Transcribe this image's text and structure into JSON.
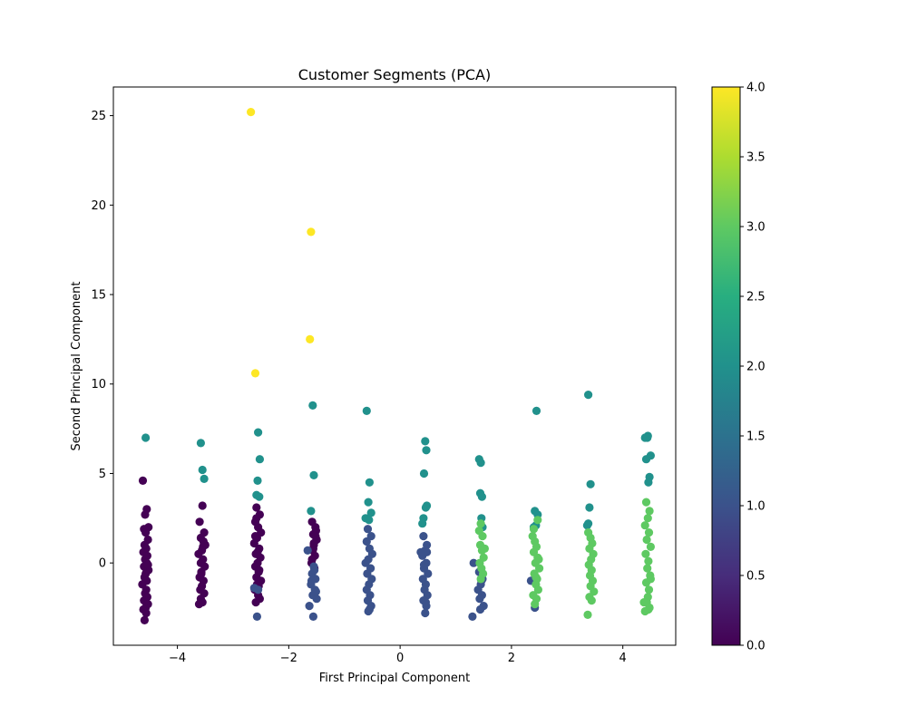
{
  "chart_data": {
    "type": "scatter",
    "title": "Customer Segments (PCA)",
    "xlabel": "First Principal Component",
    "ylabel": "Second Principal Component",
    "xlim": [
      -5.15,
      4.95
    ],
    "ylim": [
      -4.6,
      26.6
    ],
    "x_ticks": [
      -4,
      -2,
      0,
      2,
      4
    ],
    "x_tick_labels": [
      "−4",
      "−2",
      "0",
      "2",
      "4"
    ],
    "y_ticks": [
      0,
      5,
      10,
      15,
      20,
      25
    ],
    "y_tick_labels": [
      "0",
      "5",
      "10",
      "15",
      "20",
      "25"
    ],
    "grid": false,
    "legend": "none",
    "colormap": "viridis",
    "colorbar": {
      "range": [
        0,
        4
      ],
      "ticks": [
        0.0,
        0.5,
        1.0,
        1.5,
        2.0,
        2.5,
        3.0,
        3.5,
        4.0
      ],
      "tick_labels": [
        "0.0",
        "0.5",
        "1.0",
        "1.5",
        "2.0",
        "2.5",
        "3.0",
        "3.5",
        "4.0"
      ]
    },
    "cluster_colors": [
      "#440154",
      "#3b528b",
      "#21918c",
      "#5ec962",
      "#fde725"
    ],
    "clusters": [
      {
        "value": 0,
        "x": [
          -4.62,
          -4.55,
          -4.58,
          -4.52,
          -4.6,
          -4.57,
          -4.53,
          -4.59,
          -4.56,
          -4.61,
          -4.54,
          -4.58,
          -4.55,
          -4.6,
          -4.52,
          -4.57,
          -4.59,
          -4.55,
          -4.63,
          -4.56,
          -4.58,
          -4.54,
          -4.6,
          -4.53,
          -4.57,
          -4.61,
          -4.56,
          -4.59,
          -4.53,
          -3.55,
          -3.6,
          -3.52,
          -3.58,
          -3.5,
          -3.56,
          -3.62,
          -3.54,
          -3.58,
          -3.51,
          -3.57,
          -3.6,
          -3.53,
          -3.56,
          -3.59,
          -3.52,
          -3.58,
          -3.55,
          -3.61,
          -3.54,
          -3.57,
          -3.53,
          -2.58,
          -2.52,
          -2.6,
          -2.55,
          -2.5,
          -2.57,
          -2.62,
          -2.53,
          -2.59,
          -2.51,
          -2.56,
          -2.6,
          -2.54,
          -2.58,
          -2.5,
          -2.57,
          -2.61,
          -2.55,
          -2.52,
          -2.59,
          -2.56,
          -2.53,
          -2.6,
          -2.54,
          -2.58,
          -1.58,
          -1.52,
          -1.56,
          -1.5,
          -1.55,
          -1.57,
          -1.53,
          -1.59,
          -1.51,
          -1.55,
          -1.58,
          -1.54,
          -1.52,
          -1.56
        ],
        "y": [
          4.6,
          3.0,
          2.7,
          2.0,
          1.9,
          1.7,
          1.3,
          1.0,
          0.8,
          0.6,
          0.4,
          0.2,
          0.0,
          -0.2,
          -0.4,
          -0.6,
          -0.8,
          -1.0,
          -1.2,
          -1.5,
          -1.7,
          -1.9,
          -2.1,
          -2.3,
          -2.5,
          -2.6,
          -2.8,
          -3.2,
          -0.1,
          3.2,
          2.3,
          1.7,
          1.4,
          1.0,
          0.7,
          0.5,
          0.2,
          0.0,
          -0.2,
          -0.5,
          -0.8,
          -1.0,
          -1.3,
          -1.5,
          -1.7,
          -2.0,
          -2.2,
          -2.3,
          0.9,
          -0.6,
          1.2,
          3.1,
          2.7,
          2.3,
          2.0,
          1.7,
          1.4,
          1.1,
          0.8,
          0.5,
          0.3,
          0.0,
          -0.2,
          -0.5,
          -0.8,
          -1.0,
          -1.2,
          -1.5,
          -1.8,
          -2.0,
          -2.2,
          0.6,
          -0.4,
          1.5,
          -1.3,
          2.5,
          2.3,
          2.0,
          1.6,
          1.3,
          1.0,
          0.7,
          0.4,
          0.0,
          1.8,
          1.1,
          0.2,
          -0.3,
          1.5,
          0.8
        ]
      },
      {
        "value": 1,
        "x": [
          -2.62,
          -2.55,
          -2.57,
          -1.55,
          -1.58,
          -1.52,
          -1.6,
          -1.53,
          -1.57,
          -1.5,
          -1.63,
          -1.56,
          -1.54,
          -1.59,
          -1.66,
          -1.51,
          -0.58,
          -0.52,
          -0.6,
          -0.55,
          -0.5,
          -0.57,
          -0.62,
          -0.53,
          -0.59,
          -0.51,
          -0.56,
          -0.6,
          -0.54,
          -0.58,
          -0.52,
          -0.57,
          -0.55,
          0.42,
          0.48,
          0.45,
          0.4,
          0.47,
          0.43,
          0.5,
          0.41,
          0.46,
          0.44,
          0.49,
          0.42,
          0.47,
          0.45,
          0.43,
          0.48,
          0.46,
          0.37,
          1.42,
          1.48,
          1.45,
          1.4,
          1.47,
          1.43,
          1.5,
          1.44,
          1.32,
          1.3,
          1.46,
          2.35,
          2.42
        ],
        "y": [
          -1.4,
          -1.5,
          -3.0,
          -0.2,
          -0.6,
          -0.9,
          -1.2,
          -1.5,
          -1.8,
          -2.0,
          -2.4,
          -3.0,
          -0.4,
          -1.0,
          0.7,
          -1.6,
          1.9,
          1.5,
          1.2,
          0.8,
          0.5,
          0.2,
          0.0,
          -0.3,
          -0.6,
          -0.9,
          -1.2,
          -1.5,
          -1.8,
          -2.1,
          -2.4,
          -2.7,
          -2.6,
          1.5,
          1.0,
          0.7,
          0.4,
          0.0,
          -0.3,
          -0.6,
          -0.9,
          -1.2,
          -1.5,
          -1.8,
          -2.1,
          -2.4,
          -2.8,
          -0.1,
          0.6,
          -2.2,
          0.6,
          -0.5,
          -0.9,
          -1.2,
          -1.5,
          -1.8,
          -2.0,
          -2.4,
          -2.6,
          0.0,
          -3.0,
          -1.0,
          -1.0,
          -2.5
        ]
      },
      {
        "value": 2,
        "x": [
          -4.57,
          -3.58,
          -3.55,
          -3.52,
          -2.55,
          -2.52,
          -2.56,
          -2.58,
          -2.53,
          -1.57,
          -1.55,
          -1.6,
          -0.6,
          -0.55,
          -0.57,
          -0.52,
          -0.62,
          -0.56,
          0.45,
          0.47,
          0.43,
          0.48,
          0.46,
          0.42,
          0.4,
          1.42,
          1.45,
          1.44,
          1.47,
          1.46,
          1.48,
          2.45,
          2.42,
          2.47,
          2.44,
          2.4,
          3.38,
          3.42,
          3.4,
          3.38,
          3.36,
          4.45,
          4.5,
          4.42,
          4.48,
          4.44,
          4.46,
          4.4
        ],
        "y": [
          7.0,
          6.7,
          5.2,
          4.7,
          7.3,
          5.8,
          4.6,
          3.8,
          3.7,
          8.8,
          4.9,
          2.9,
          8.5,
          4.5,
          3.4,
          2.8,
          2.5,
          2.4,
          6.8,
          6.3,
          5.0,
          3.2,
          3.1,
          2.5,
          2.2,
          5.8,
          5.6,
          3.9,
          3.7,
          2.5,
          2.0,
          8.5,
          2.9,
          2.7,
          2.1,
          2.0,
          9.4,
          4.4,
          3.1,
          2.2,
          2.1,
          7.1,
          6.0,
          5.8,
          4.8,
          7.0,
          4.5,
          7.0
        ]
      },
      {
        "value": 3,
        "x": [
          1.45,
          1.48,
          1.44,
          1.47,
          1.5,
          1.43,
          1.46,
          1.49,
          1.45,
          1.42,
          1.52,
          2.38,
          2.42,
          2.45,
          2.4,
          2.47,
          2.43,
          2.5,
          2.41,
          2.46,
          2.44,
          2.48,
          2.39,
          2.45,
          2.42,
          2.47,
          2.4,
          2.44,
          2.49,
          3.38,
          3.42,
          3.45,
          3.4,
          3.47,
          3.43,
          3.39,
          3.44,
          3.41,
          3.46,
          3.42,
          3.48,
          3.4,
          3.44,
          3.37,
          4.42,
          4.48,
          4.45,
          4.4,
          4.47,
          4.43,
          4.5,
          4.41,
          4.46,
          4.44,
          4.49,
          4.42,
          4.47,
          4.45,
          4.43,
          4.48,
          4.4,
          4.46,
          4.38,
          4.5
        ],
        "y": [
          2.2,
          1.5,
          1.0,
          0.7,
          0.3,
          0.0,
          -0.3,
          -0.6,
          -0.9,
          1.8,
          0.8,
          1.5,
          1.2,
          0.9,
          0.6,
          0.3,
          0.0,
          -0.3,
          -0.6,
          -0.9,
          -1.2,
          -1.5,
          -1.8,
          -2.0,
          -2.3,
          2.4,
          1.9,
          -0.8,
          0.2,
          1.7,
          1.4,
          1.1,
          0.8,
          0.5,
          0.2,
          -0.1,
          -0.4,
          -0.7,
          -1.0,
          -1.3,
          -1.6,
          -1.9,
          -2.1,
          -2.9,
          3.4,
          2.9,
          2.5,
          2.1,
          1.7,
          1.3,
          0.9,
          0.5,
          0.1,
          -0.3,
          -0.7,
          -1.1,
          -1.5,
          -1.9,
          -2.2,
          -2.5,
          -2.7,
          -2.6,
          -2.2,
          -0.9
        ]
      },
      {
        "value": 4,
        "x": [
          -2.68,
          -1.6,
          -1.62,
          -2.6
        ],
        "y": [
          25.2,
          18.5,
          12.5,
          10.6
        ]
      }
    ]
  }
}
